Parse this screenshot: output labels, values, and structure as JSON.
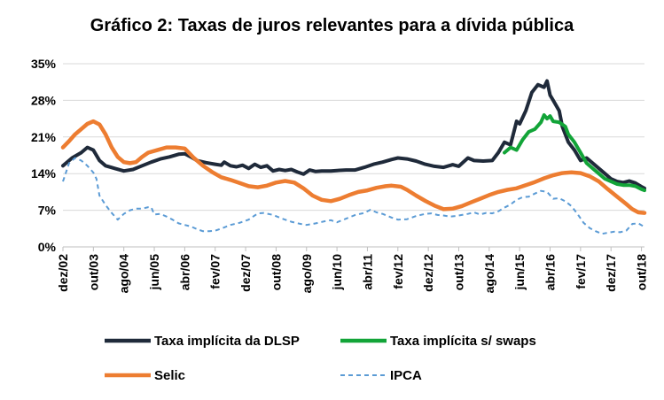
{
  "chart_data": {
    "type": "line",
    "title": "Gráfico 2: Taxas de juros relevantes para a dívida pública",
    "xlabel": "",
    "ylabel": "",
    "ylim": [
      0,
      35
    ],
    "yticks": [
      "0%",
      "7%",
      "14%",
      "21%",
      "28%",
      "35%"
    ],
    "ytick_values": [
      0,
      7,
      14,
      21,
      28,
      35
    ],
    "grid": true,
    "x_range": [
      0,
      191
    ],
    "categories": [
      "dez/02",
      "out/03",
      "ago/04",
      "jun/05",
      "abr/06",
      "fev/07",
      "dez/07",
      "out/08",
      "ago/09",
      "jun/10",
      "abr/11",
      "fev/12",
      "dez/12",
      "out/13",
      "ago/14",
      "jun/15",
      "abr/16",
      "fev/17",
      "dez/17",
      "out/18"
    ],
    "category_index": [
      0,
      10,
      20,
      30,
      40,
      50,
      60,
      70,
      80,
      90,
      100,
      110,
      120,
      130,
      140,
      150,
      160,
      170,
      180,
      190
    ],
    "legend_position": "bottom",
    "series": [
      {
        "name": "Taxa implícita da DLSP",
        "color": "#1f2a3a",
        "style": "solid",
        "points": [
          [
            0,
            15.5
          ],
          [
            3,
            17
          ],
          [
            6,
            18
          ],
          [
            8,
            19
          ],
          [
            10,
            18.5
          ],
          [
            12,
            16.5
          ],
          [
            14,
            15.5
          ],
          [
            17,
            15
          ],
          [
            20,
            14.5
          ],
          [
            23,
            14.8
          ],
          [
            26,
            15.5
          ],
          [
            29,
            16.2
          ],
          [
            32,
            16.8
          ],
          [
            35,
            17.2
          ],
          [
            38,
            17.7
          ],
          [
            40,
            17.8
          ],
          [
            42,
            17.2
          ],
          [
            44,
            16.5
          ],
          [
            47,
            16.1
          ],
          [
            50,
            15.8
          ],
          [
            52,
            15.6
          ],
          [
            53,
            16.2
          ],
          [
            55,
            15.5
          ],
          [
            57,
            15.3
          ],
          [
            59,
            15.6
          ],
          [
            61,
            15
          ],
          [
            63,
            15.8
          ],
          [
            65,
            15.2
          ],
          [
            67,
            15.5
          ],
          [
            69,
            14.5
          ],
          [
            71,
            14.8
          ],
          [
            73,
            14.6
          ],
          [
            75,
            14.8
          ],
          [
            77,
            14.3
          ],
          [
            79,
            13.9
          ],
          [
            81,
            14.7
          ],
          [
            83,
            14.4
          ],
          [
            85,
            14.5
          ],
          [
            88,
            14.5
          ],
          [
            90,
            14.6
          ],
          [
            93,
            14.7
          ],
          [
            96,
            14.7
          ],
          [
            99,
            15.2
          ],
          [
            102,
            15.8
          ],
          [
            105,
            16.2
          ],
          [
            108,
            16.7
          ],
          [
            110,
            17
          ],
          [
            113,
            16.8
          ],
          [
            116,
            16.4
          ],
          [
            119,
            15.8
          ],
          [
            122,
            15.4
          ],
          [
            125,
            15.2
          ],
          [
            128,
            15.7
          ],
          [
            130,
            15.4
          ],
          [
            133,
            17
          ],
          [
            135,
            16.5
          ],
          [
            138,
            16.4
          ],
          [
            141,
            16.5
          ],
          [
            143,
            18
          ],
          [
            145,
            20
          ],
          [
            147,
            19.5
          ],
          [
            149,
            24
          ],
          [
            150,
            23.5
          ],
          [
            152,
            26
          ],
          [
            154,
            29.5
          ],
          [
            156,
            31
          ],
          [
            158,
            30.5
          ],
          [
            159,
            31.7
          ],
          [
            160,
            29
          ],
          [
            161,
            28
          ],
          [
            163,
            26
          ],
          [
            164,
            23
          ],
          [
            166,
            20
          ],
          [
            168,
            18.5
          ],
          [
            170,
            16.5
          ],
          [
            172,
            17
          ],
          [
            174,
            16
          ],
          [
            176,
            15
          ],
          [
            178,
            14
          ],
          [
            180,
            13
          ],
          [
            182,
            12.5
          ],
          [
            184,
            12.3
          ],
          [
            186,
            12.6
          ],
          [
            188,
            12.2
          ],
          [
            190,
            11.5
          ],
          [
            191,
            11.2
          ]
        ]
      },
      {
        "name": "Taxa implícita s/ swaps",
        "color": "#12a438",
        "style": "solid",
        "points": [
          [
            145,
            18
          ],
          [
            147,
            19
          ],
          [
            149,
            18.5
          ],
          [
            151,
            20.5
          ],
          [
            153,
            22
          ],
          [
            155,
            22.5
          ],
          [
            157,
            23.8
          ],
          [
            158,
            25.2
          ],
          [
            159,
            24.5
          ],
          [
            160,
            25
          ],
          [
            161,
            24
          ],
          [
            163,
            23.8
          ],
          [
            165,
            23
          ],
          [
            166,
            21.5
          ],
          [
            168,
            20
          ],
          [
            170,
            18
          ],
          [
            172,
            16
          ],
          [
            174,
            15
          ],
          [
            176,
            14
          ],
          [
            178,
            13
          ],
          [
            180,
            12.5
          ],
          [
            182,
            12
          ],
          [
            184,
            11.8
          ],
          [
            186,
            11.8
          ],
          [
            188,
            11.6
          ],
          [
            190,
            11
          ],
          [
            191,
            10.8
          ]
        ]
      },
      {
        "name": "Selic",
        "color": "#ed7d31",
        "style": "solid",
        "points": [
          [
            0,
            19
          ],
          [
            2,
            20.2
          ],
          [
            4,
            21.5
          ],
          [
            6,
            22.5
          ],
          [
            8,
            23.5
          ],
          [
            10,
            24
          ],
          [
            12,
            23.4
          ],
          [
            14,
            21.5
          ],
          [
            16,
            19
          ],
          [
            18,
            17.2
          ],
          [
            20,
            16.2
          ],
          [
            22,
            16
          ],
          [
            24,
            16.2
          ],
          [
            26,
            17.2
          ],
          [
            28,
            18
          ],
          [
            31,
            18.5
          ],
          [
            34,
            19
          ],
          [
            37,
            19
          ],
          [
            40,
            18.8
          ],
          [
            43,
            17
          ],
          [
            46,
            15.5
          ],
          [
            49,
            14.3
          ],
          [
            52,
            13.3
          ],
          [
            55,
            12.8
          ],
          [
            58,
            12.2
          ],
          [
            61,
            11.6
          ],
          [
            64,
            11.4
          ],
          [
            67,
            11.7
          ],
          [
            70,
            12.3
          ],
          [
            73,
            12.6
          ],
          [
            76,
            12.3
          ],
          [
            79,
            11.2
          ],
          [
            82,
            9.8
          ],
          [
            85,
            9
          ],
          [
            88,
            8.75
          ],
          [
            91,
            9.2
          ],
          [
            94,
            9.9
          ],
          [
            97,
            10.5
          ],
          [
            100,
            10.8
          ],
          [
            103,
            11.3
          ],
          [
            106,
            11.6
          ],
          [
            108,
            11.7
          ],
          [
            111,
            11.5
          ],
          [
            113,
            10.9
          ],
          [
            116,
            9.8
          ],
          [
            119,
            8.8
          ],
          [
            122,
            7.9
          ],
          [
            125,
            7.2
          ],
          [
            128,
            7.3
          ],
          [
            131,
            7.8
          ],
          [
            134,
            8.5
          ],
          [
            137,
            9.2
          ],
          [
            140,
            9.9
          ],
          [
            143,
            10.5
          ],
          [
            146,
            10.9
          ],
          [
            149,
            11.2
          ],
          [
            152,
            11.8
          ],
          [
            155,
            12.4
          ],
          [
            158,
            13.1
          ],
          [
            161,
            13.7
          ],
          [
            164,
            14.1
          ],
          [
            167,
            14.25
          ],
          [
            170,
            14.1
          ],
          [
            173,
            13.5
          ],
          [
            176,
            12.5
          ],
          [
            179,
            11
          ],
          [
            182,
            9.6
          ],
          [
            185,
            8.2
          ],
          [
            187,
            7.2
          ],
          [
            189,
            6.6
          ],
          [
            191,
            6.5
          ]
        ]
      },
      {
        "name": "IPCA",
        "color": "#5b9bd5",
        "style": "dashed",
        "points": [
          [
            0,
            12.5
          ],
          [
            2,
            16
          ],
          [
            4,
            17
          ],
          [
            6,
            16.5
          ],
          [
            8,
            15.5
          ],
          [
            10,
            14.2
          ],
          [
            11,
            13
          ],
          [
            12,
            9.8
          ],
          [
            14,
            8
          ],
          [
            16,
            6.5
          ],
          [
            18,
            5.2
          ],
          [
            20,
            6.3
          ],
          [
            22,
            7
          ],
          [
            24,
            7.3
          ],
          [
            26,
            7.3
          ],
          [
            28,
            7.6
          ],
          [
            29,
            7.6
          ],
          [
            30,
            6.2
          ],
          [
            32,
            6.3
          ],
          [
            34,
            5.8
          ],
          [
            36,
            5.2
          ],
          [
            38,
            4.5
          ],
          [
            40,
            4.2
          ],
          [
            42,
            3.9
          ],
          [
            44,
            3.4
          ],
          [
            46,
            3
          ],
          [
            48,
            3
          ],
          [
            50,
            3.1
          ],
          [
            52,
            3.5
          ],
          [
            55,
            4.2
          ],
          [
            58,
            4.6
          ],
          [
            61,
            5.2
          ],
          [
            64,
            6.4
          ],
          [
            66,
            6.5
          ],
          [
            69,
            6.1
          ],
          [
            72,
            5.4
          ],
          [
            75,
            4.8
          ],
          [
            78,
            4.4
          ],
          [
            80,
            4.2
          ],
          [
            83,
            4.5
          ],
          [
            86,
            4.9
          ],
          [
            88,
            5.1
          ],
          [
            90,
            4.7
          ],
          [
            93,
            5.4
          ],
          [
            96,
            6.1
          ],
          [
            99,
            6.5
          ],
          [
            101,
            7.1
          ],
          [
            103,
            6.6
          ],
          [
            105,
            6.3
          ],
          [
            108,
            5.6
          ],
          [
            110,
            5.2
          ],
          [
            113,
            5.3
          ],
          [
            116,
            5.9
          ],
          [
            119,
            6.3
          ],
          [
            121,
            6.4
          ],
          [
            123,
            6.1
          ],
          [
            125,
            6.0
          ],
          [
            127,
            5.8
          ],
          [
            129,
            5.9
          ],
          [
            131,
            6.1
          ],
          [
            133,
            6.3
          ],
          [
            135,
            6.6
          ],
          [
            137,
            6.2
          ],
          [
            139,
            6.5
          ],
          [
            141,
            6.4
          ],
          [
            143,
            6.8
          ],
          [
            145,
            7.5
          ],
          [
            147,
            8.1
          ],
          [
            149,
            9
          ],
          [
            151,
            9.5
          ],
          [
            153,
            9.6
          ],
          [
            155,
            10.2
          ],
          [
            157,
            10.7
          ],
          [
            159,
            10.5
          ],
          [
            161,
            9.2
          ],
          [
            163,
            9.3
          ],
          [
            165,
            8.7
          ],
          [
            167,
            7.8
          ],
          [
            169,
            6.3
          ],
          [
            171,
            4.6
          ],
          [
            173,
            3.6
          ],
          [
            175,
            3
          ],
          [
            177,
            2.5
          ],
          [
            179,
            2.7
          ],
          [
            181,
            2.9
          ],
          [
            183,
            2.8
          ],
          [
            185,
            3.1
          ],
          [
            187,
            4.4
          ],
          [
            189,
            4.5
          ],
          [
            191,
            3.8
          ]
        ]
      }
    ]
  }
}
